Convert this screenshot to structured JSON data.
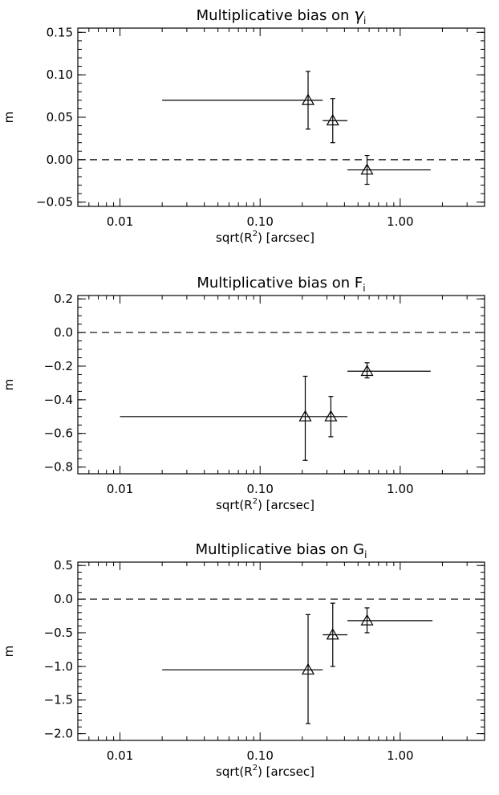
{
  "chart_data": [
    {
      "type": "scatter",
      "title": "Multiplicative bias on ",
      "title_symbol": "γ",
      "title_subscript": "i",
      "xlabel_prefix": "sqrt(R",
      "xlabel_sup": "2",
      "xlabel_suffix": ")  [arcsec]",
      "ylabel": "m",
      "xscale": "log",
      "xlim": [
        0.005,
        4.0
      ],
      "ylim": [
        -0.055,
        0.155
      ],
      "x_ticks": [
        0.01,
        0.1,
        1.0
      ],
      "x_tick_labels": [
        "0.01",
        "0.10",
        "1.00"
      ],
      "y_ticks": [
        -0.05,
        0.0,
        0.05,
        0.1,
        0.15
      ],
      "y_tick_labels": [
        "-0.05",
        "0.00",
        "0.05",
        "0.10",
        "0.15"
      ],
      "y_minor_step": 0.01,
      "reference_line": 0,
      "points": [
        {
          "x": 0.22,
          "y": 0.07,
          "xerr_low": 0.02,
          "xerr_high": 0.28,
          "yerr_low": 0.036,
          "yerr_high": 0.104
        },
        {
          "x": 0.33,
          "y": 0.046,
          "xerr_low": 0.28,
          "xerr_high": 0.42,
          "yerr_low": 0.02,
          "yerr_high": 0.072
        },
        {
          "x": 0.58,
          "y": -0.012,
          "xerr_low": 0.42,
          "xerr_high": 1.65,
          "yerr_low": -0.029,
          "yerr_high": 0.005
        }
      ]
    },
    {
      "type": "scatter",
      "title": "Multiplicative bias on F",
      "title_symbol": "",
      "title_subscript": "i",
      "xlabel_prefix": "sqrt(R",
      "xlabel_sup": "2",
      "xlabel_suffix": ")  [arcsec]",
      "ylabel": "m",
      "xscale": "log",
      "xlim": [
        0.005,
        4.0
      ],
      "ylim": [
        -0.84,
        0.22
      ],
      "x_ticks": [
        0.01,
        0.1,
        1.0
      ],
      "x_tick_labels": [
        "0.01",
        "0.10",
        "1.00"
      ],
      "y_ticks": [
        -0.8,
        -0.6,
        -0.4,
        -0.2,
        0.0,
        0.2
      ],
      "y_tick_labels": [
        "-0.8",
        "-0.6",
        "-0.4",
        "-0.2",
        "0.0",
        "0.2"
      ],
      "y_minor_step": 0.05,
      "reference_line": 0,
      "points": [
        {
          "x": 0.21,
          "y": -0.5,
          "xerr_low": 0.01,
          "xerr_high": 0.27,
          "yerr_low": -0.76,
          "yerr_high": -0.26
        },
        {
          "x": 0.32,
          "y": -0.5,
          "xerr_low": 0.27,
          "xerr_high": 0.42,
          "yerr_low": -0.62,
          "yerr_high": -0.38
        },
        {
          "x": 0.58,
          "y": -0.23,
          "xerr_low": 0.42,
          "xerr_high": 1.65,
          "yerr_low": -0.27,
          "yerr_high": -0.18
        }
      ]
    },
    {
      "type": "scatter",
      "title": "Multiplicative bias on G",
      "title_symbol": "",
      "title_subscript": "i",
      "xlabel_prefix": "sqrt(R",
      "xlabel_sup": "2",
      "xlabel_suffix": ")  [arcsec]",
      "ylabel": "m",
      "xscale": "log",
      "xlim": [
        0.005,
        4.0
      ],
      "ylim": [
        -2.1,
        0.55
      ],
      "x_ticks": [
        0.01,
        0.1,
        1.0
      ],
      "x_tick_labels": [
        "0.01",
        "0.10",
        "1.00"
      ],
      "y_ticks": [
        -2.0,
        -1.5,
        -1.0,
        -0.5,
        0.0,
        0.5
      ],
      "y_tick_labels": [
        "-2.0",
        "-1.5",
        "-1.0",
        "-0.5",
        "0.0",
        "0.5"
      ],
      "y_minor_step": 0.1,
      "reference_line": 0,
      "points": [
        {
          "x": 0.22,
          "y": -1.05,
          "xerr_low": 0.02,
          "xerr_high": 0.28,
          "yerr_low": -1.85,
          "yerr_high": -0.23
        },
        {
          "x": 0.33,
          "y": -0.53,
          "xerr_low": 0.28,
          "xerr_high": 0.42,
          "yerr_low": -1.0,
          "yerr_high": -0.06
        },
        {
          "x": 0.58,
          "y": -0.32,
          "xerr_low": 0.42,
          "xerr_high": 1.7,
          "yerr_low": -0.5,
          "yerr_high": -0.13
        }
      ]
    }
  ]
}
